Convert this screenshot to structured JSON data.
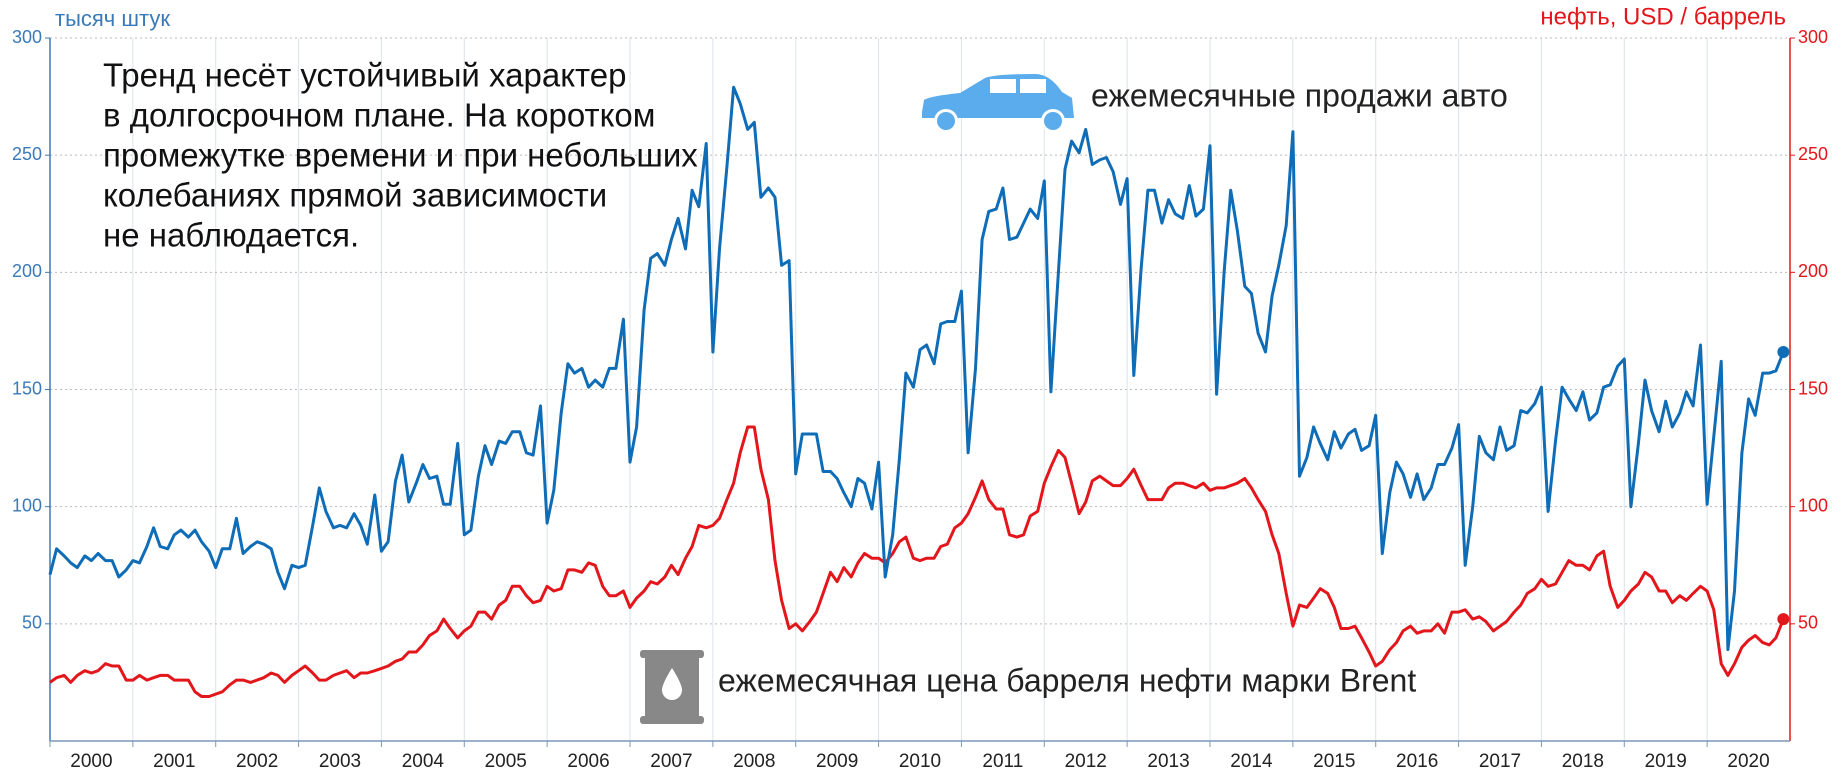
{
  "chart_data": {
    "type": "line",
    "y_axis_label": "тысяч штук",
    "y2_axis_label": "нефть, USD / баррель",
    "annotation": [
      "Тренд несёт устойчивый характер",
      "в долгосрочном плане. На коротком",
      "промежутке времени и при небольших",
      "колебаниях прямой зависимости",
      "не наблюдается."
    ],
    "x": [
      2000,
      2000.08,
      2000.17,
      2000.25,
      2000.33,
      2000.42,
      2000.5,
      2000.58,
      2000.67,
      2000.75,
      2000.83,
      2000.92,
      2001,
      2001.08,
      2001.17,
      2001.25,
      2001.33,
      2001.42,
      2001.5,
      2001.58,
      2001.67,
      2001.75,
      2001.83,
      2001.92,
      2002,
      2002.08,
      2002.17,
      2002.25,
      2002.33,
      2002.42,
      2002.5,
      2002.58,
      2002.67,
      2002.75,
      2002.83,
      2002.92,
      2003,
      2003.08,
      2003.17,
      2003.25,
      2003.33,
      2003.42,
      2003.5,
      2003.58,
      2003.67,
      2003.75,
      2003.83,
      2003.92,
      2004,
      2004.08,
      2004.17,
      2004.25,
      2004.33,
      2004.42,
      2004.5,
      2004.58,
      2004.67,
      2004.75,
      2004.83,
      2004.92,
      2005,
      2005.08,
      2005.17,
      2005.25,
      2005.33,
      2005.42,
      2005.5,
      2005.58,
      2005.67,
      2005.75,
      2005.83,
      2005.92,
      2006,
      2006.08,
      2006.17,
      2006.25,
      2006.33,
      2006.42,
      2006.5,
      2006.58,
      2006.67,
      2006.75,
      2006.83,
      2006.92,
      2007,
      2007.08,
      2007.17,
      2007.25,
      2007.33,
      2007.42,
      2007.5,
      2007.58,
      2007.67,
      2007.75,
      2007.83,
      2007.92,
      2008,
      2008.08,
      2008.17,
      2008.25,
      2008.33,
      2008.42,
      2008.5,
      2008.58,
      2008.67,
      2008.75,
      2008.83,
      2008.92,
      2009,
      2009.08,
      2009.17,
      2009.25,
      2009.33,
      2009.42,
      2009.5,
      2009.58,
      2009.67,
      2009.75,
      2009.83,
      2009.92,
      2010,
      2010.08,
      2010.17,
      2010.25,
      2010.33,
      2010.42,
      2010.5,
      2010.58,
      2010.67,
      2010.75,
      2010.83,
      2010.92,
      2011,
      2011.08,
      2011.17,
      2011.25,
      2011.33,
      2011.42,
      2011.5,
      2011.58,
      2011.67,
      2011.75,
      2011.83,
      2011.92,
      2012,
      2012.08,
      2012.17,
      2012.25,
      2012.33,
      2012.42,
      2012.5,
      2012.58,
      2012.67,
      2012.75,
      2012.83,
      2012.92,
      2013,
      2013.08,
      2013.17,
      2013.25,
      2013.33,
      2013.42,
      2013.5,
      2013.58,
      2013.67,
      2013.75,
      2013.83,
      2013.92,
      2014,
      2014.08,
      2014.17,
      2014.25,
      2014.33,
      2014.42,
      2014.5,
      2014.58,
      2014.67,
      2014.75,
      2014.83,
      2014.92,
      2015,
      2015.08,
      2015.17,
      2015.25,
      2015.33,
      2015.42,
      2015.5,
      2015.58,
      2015.67,
      2015.75,
      2015.83,
      2015.92,
      2016,
      2016.08,
      2016.17,
      2016.25,
      2016.33,
      2016.42,
      2016.5,
      2016.58,
      2016.67,
      2016.75,
      2016.83,
      2016.92,
      2017,
      2017.08,
      2017.17,
      2017.25,
      2017.33,
      2017.42,
      2017.5,
      2017.58,
      2017.67,
      2017.75,
      2017.83,
      2017.92,
      2018,
      2018.08,
      2018.17,
      2018.25,
      2018.33,
      2018.42,
      2018.5,
      2018.58,
      2018.67,
      2018.75,
      2018.83,
      2018.92,
      2019,
      2019.08,
      2019.17,
      2019.25,
      2019.33,
      2019.42,
      2019.5,
      2019.58,
      2019.67,
      2019.75,
      2019.83,
      2019.92,
      2020,
      2020.08,
      2020.17,
      2020.25,
      2020.33,
      2020.42,
      2020.5,
      2020.58,
      2020.67,
      2020.75,
      2020.83,
      2020.92
    ],
    "series": [
      {
        "name": "ежемесячные продажи авто",
        "color": "#0f6cb6",
        "axis": "y",
        "values": [
          71,
          82,
          79,
          76,
          74,
          79,
          77,
          80,
          77,
          77,
          70,
          73,
          77,
          76,
          83,
          91,
          83,
          82,
          88,
          90,
          87,
          90,
          85,
          81,
          74,
          82,
          82,
          95,
          80,
          83,
          85,
          84,
          82,
          72,
          65,
          75,
          74,
          75,
          92,
          108,
          98,
          91,
          92,
          91,
          97,
          92,
          84,
          105,
          81,
          85,
          111,
          122,
          102,
          110,
          118,
          112,
          113,
          101,
          101,
          127,
          88,
          90,
          113,
          126,
          118,
          128,
          127,
          132,
          132,
          123,
          122,
          143,
          93,
          107,
          140,
          161,
          157,
          159,
          151,
          154,
          151,
          159,
          159,
          180,
          119,
          134,
          184,
          206,
          208,
          203,
          214,
          223,
          210,
          235,
          228,
          255,
          166,
          210,
          245,
          279,
          272,
          261,
          264,
          232,
          236,
          232,
          203,
          205,
          114,
          131,
          131,
          131,
          115,
          115,
          112,
          106,
          100,
          112,
          110,
          99,
          119,
          70,
          88,
          120,
          157,
          151,
          167,
          169,
          161,
          178,
          179,
          179,
          192,
          123,
          159,
          214,
          226,
          227,
          236,
          214,
          215,
          221,
          227,
          223,
          239,
          149,
          200,
          244,
          256,
          251,
          261,
          246,
          248,
          249,
          243,
          229,
          240,
          156,
          202,
          235,
          235,
          221,
          231,
          225,
          223,
          237,
          224,
          227,
          254,
          148,
          200,
          235,
          218,
          194,
          191,
          174,
          166,
          190,
          203,
          220,
          260,
          113,
          121,
          134,
          127,
          120,
          132,
          125,
          131,
          133,
          124,
          126,
          139,
          80,
          106,
          119,
          114,
          104,
          114,
          103,
          108,
          118,
          118,
          125,
          135,
          75,
          100,
          130,
          123,
          120,
          134,
          124,
          126,
          141,
          140,
          144,
          151,
          98,
          128,
          151,
          146,
          141,
          149,
          137,
          140,
          151,
          152,
          160,
          163,
          100,
          127,
          154,
          141,
          132,
          145,
          134,
          140,
          149,
          143,
          169,
          101,
          130,
          162,
          39,
          64,
          123,
          146,
          139,
          157,
          157,
          158,
          166
        ]
      },
      {
        "name": "ежемесячная цена барреля нефти марки Brent",
        "color": "#e3161b",
        "axis": "y2",
        "values": [
          25,
          27,
          28,
          25,
          28,
          30,
          29,
          30,
          33,
          32,
          32,
          26,
          26,
          28,
          26,
          27,
          28,
          28,
          26,
          26,
          26,
          21,
          19,
          19,
          20,
          21,
          24,
          26,
          26,
          25,
          26,
          27,
          29,
          28,
          25,
          28,
          30,
          32,
          29,
          26,
          26,
          28,
          29,
          30,
          27,
          29,
          29,
          30,
          31,
          32,
          34,
          35,
          38,
          38,
          41,
          45,
          47,
          52,
          48,
          44,
          47,
          49,
          55,
          55,
          52,
          58,
          60,
          66,
          66,
          62,
          59,
          60,
          66,
          64,
          65,
          73,
          73,
          72,
          76,
          75,
          66,
          62,
          62,
          64,
          57,
          61,
          64,
          68,
          67,
          70,
          75,
          71,
          78,
          83,
          92,
          91,
          92,
          95,
          103,
          110,
          123,
          134,
          134,
          116,
          103,
          77,
          60,
          48,
          50,
          47,
          51,
          55,
          63,
          72,
          68,
          74,
          70,
          76,
          80,
          78,
          78,
          76,
          80,
          85,
          87,
          78,
          77,
          78,
          78,
          83,
          84,
          91,
          93,
          97,
          104,
          111,
          103,
          99,
          99,
          88,
          87,
          88,
          96,
          98,
          110,
          117,
          124,
          121,
          110,
          97,
          102,
          111,
          113,
          111,
          109,
          109,
          112,
          116,
          109,
          103,
          103,
          103,
          108,
          110,
          110,
          109,
          108,
          110,
          107,
          108,
          108,
          109,
          110,
          112,
          108,
          103,
          98,
          88,
          80,
          63,
          49,
          58,
          57,
          61,
          65,
          63,
          57,
          48,
          48,
          49,
          44,
          38,
          32,
          34,
          39,
          42,
          47,
          49,
          46,
          47,
          47,
          50,
          46,
          55,
          55,
          56,
          52,
          53,
          51,
          47,
          49,
          51,
          55,
          58,
          63,
          65,
          69,
          66,
          67,
          72,
          77,
          75,
          75,
          73,
          79,
          81,
          66,
          57,
          60,
          64,
          67,
          72,
          70,
          64,
          64,
          59,
          62,
          60,
          63,
          66,
          64,
          56,
          33,
          28,
          33,
          40,
          43,
          45,
          42,
          41,
          44,
          52
        ]
      }
    ],
    "xlim": [
      2000,
      2021
    ],
    "xticks": [
      2000,
      2001,
      2002,
      2003,
      2004,
      2005,
      2006,
      2007,
      2008,
      2009,
      2010,
      2011,
      2012,
      2013,
      2014,
      2015,
      2016,
      2017,
      2018,
      2019,
      2020
    ],
    "ylim": [
      0,
      300
    ],
    "yticks": [
      50,
      100,
      150,
      200,
      250,
      300
    ],
    "y2lim": [
      0,
      300
    ],
    "y2ticks": [
      50,
      100,
      150,
      200,
      250,
      300
    ],
    "grid": true
  }
}
